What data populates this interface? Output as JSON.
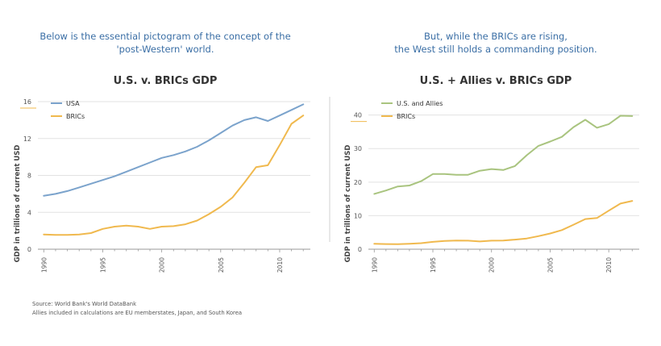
{
  "colors": {
    "accent_text": "#3a6ea5",
    "usa": "#7ba3cc",
    "allies": "#a9c47f",
    "brics": "#f0b94e",
    "grid": "#e2e2e2",
    "axis": "#999999"
  },
  "footnotes": {
    "source": "Source: World Bank's World DataBank",
    "allies_note": "Allies included in calculations are EU memberstates, Japan, and South Korea"
  },
  "chart_data": [
    {
      "type": "line",
      "intro": [
        "Below is the essential pictogram of the concept of the",
        "'post-Western' world."
      ],
      "title": "U.S. v. BRICs GDP",
      "xlabel": "",
      "ylabel": "GDP in trillions of current USD",
      "xlim": [
        1989.5,
        2012.6
      ],
      "ylim": [
        0,
        16
      ],
      "xticks": [
        1990,
        1995,
        2000,
        2005,
        2010
      ],
      "yticks": [
        0,
        4,
        8,
        12,
        16
      ],
      "x": [
        1990,
        1991,
        1992,
        1993,
        1994,
        1995,
        1996,
        1997,
        1998,
        1999,
        2000,
        2001,
        2002,
        2003,
        2004,
        2005,
        2006,
        2007,
        2008,
        2009,
        2010,
        2011,
        2012
      ],
      "legend": "top-left",
      "grid": true,
      "series": [
        {
          "name": "USA",
          "values": [
            5.8,
            6.0,
            6.3,
            6.7,
            7.1,
            7.5,
            7.9,
            8.4,
            8.9,
            9.4,
            9.9,
            10.2,
            10.6,
            11.1,
            11.8,
            12.6,
            13.4,
            14.0,
            14.3,
            13.9,
            14.5,
            15.1,
            15.7
          ]
        },
        {
          "name": "BRICs",
          "values": [
            1.6,
            1.55,
            1.55,
            1.6,
            1.75,
            2.2,
            2.45,
            2.55,
            2.45,
            2.2,
            2.45,
            2.5,
            2.7,
            3.1,
            3.8,
            4.6,
            5.6,
            7.2,
            8.9,
            9.1,
            11.3,
            13.6,
            14.5
          ]
        }
      ]
    },
    {
      "type": "line",
      "intro": [
        "But, while the BRICs are rising,",
        "the West still holds a commanding position."
      ],
      "title": "U.S. + Allies v. BRICs GDP",
      "xlabel": "",
      "ylabel": "GDP in trillions of current USD",
      "xlim": [
        1989.5,
        2012.6
      ],
      "ylim": [
        0,
        44
      ],
      "xticks": [
        1990,
        1995,
        2000,
        2005,
        2010
      ],
      "yticks": [
        0,
        10,
        20,
        30,
        40
      ],
      "x": [
        1990,
        1991,
        1992,
        1993,
        1994,
        1995,
        1996,
        1997,
        1998,
        1999,
        2000,
        2001,
        2002,
        2003,
        2004,
        2005,
        2006,
        2007,
        2008,
        2009,
        2010,
        2011,
        2012
      ],
      "legend": "top-left",
      "grid": true,
      "series": [
        {
          "name": "U.S. and Allies",
          "values": [
            16.5,
            17.5,
            18.7,
            19.0,
            20.3,
            22.4,
            22.4,
            22.2,
            22.2,
            23.4,
            23.9,
            23.6,
            24.8,
            28.0,
            30.8,
            32.1,
            33.5,
            36.4,
            38.6,
            36.2,
            37.3,
            39.8,
            39.7
          ]
        },
        {
          "name": "BRICs",
          "values": [
            1.6,
            1.55,
            1.5,
            1.6,
            1.8,
            2.2,
            2.45,
            2.6,
            2.55,
            2.3,
            2.55,
            2.6,
            2.85,
            3.2,
            3.9,
            4.7,
            5.7,
            7.3,
            9.0,
            9.3,
            11.5,
            13.6,
            14.4
          ]
        }
      ]
    }
  ]
}
